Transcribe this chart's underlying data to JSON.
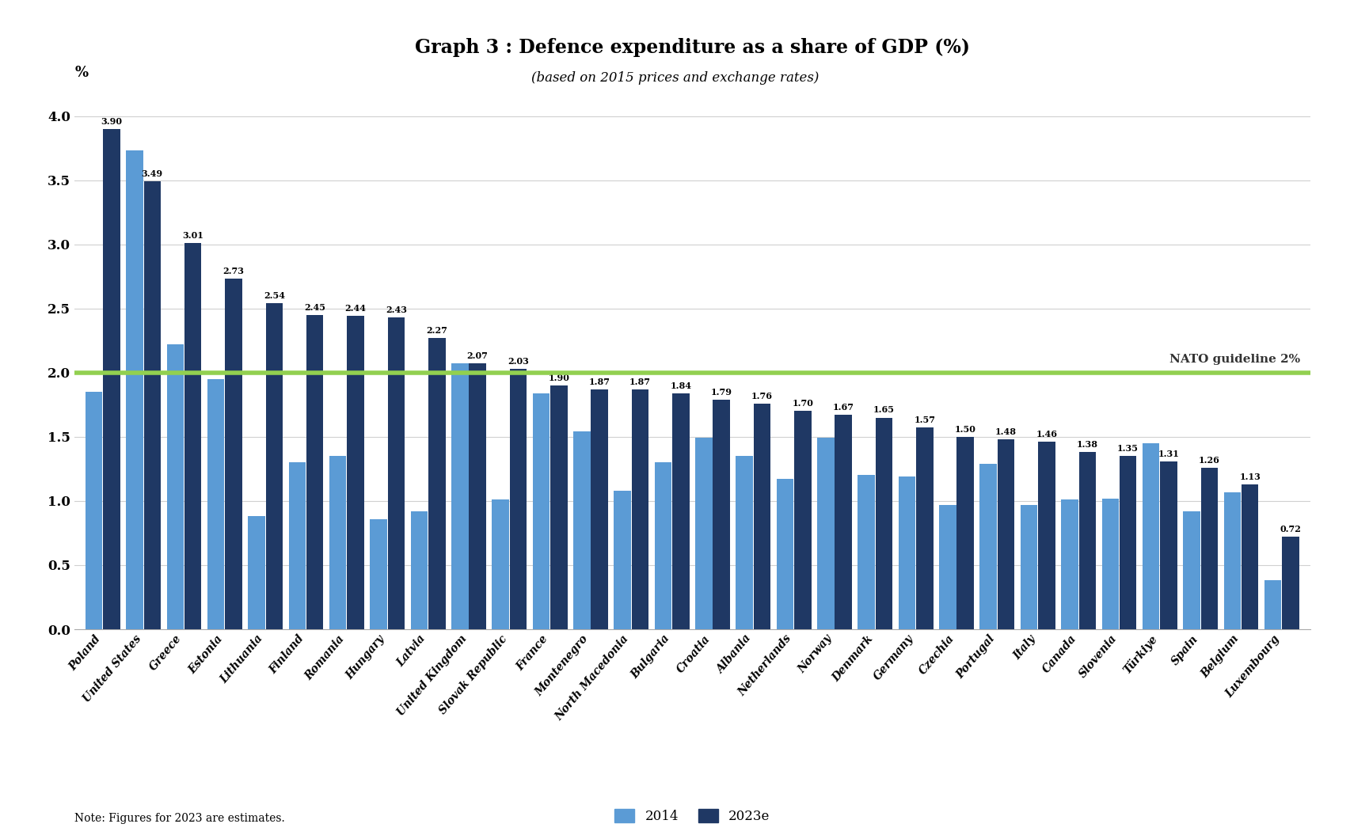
{
  "title": "Graph 3 : Defence expenditure as a share of GDP (%)",
  "subtitle": "(based on 2015 prices and exchange rates)",
  "note": "Note: Figures for 2023 are estimates.",
  "nato_guideline": 2.0,
  "nato_label": "NATO guideline 2%",
  "ylabel": "%",
  "ylim": [
    0,
    4.25
  ],
  "yticks": [
    0.0,
    0.5,
    1.0,
    1.5,
    2.0,
    2.5,
    3.0,
    3.5,
    4.0
  ],
  "color_2014": "#5b9bd5",
  "color_2023": "#1f3864",
  "legend_2014": "2014",
  "legend_2023": "2023e",
  "background_color": "#ffffff",
  "nato_line_color": "#92d050",
  "countries": [
    "Poland",
    "United States",
    "Greece",
    "Estonia",
    "Lithuania",
    "Finland",
    "Romania",
    "Hungary",
    "Latvia",
    "United Kingdom",
    "Slovak Republic",
    "France",
    "Montenegro",
    "North Macedonia",
    "Bulgaria",
    "Croatia",
    "Albania",
    "Netherlands",
    "Norway",
    "Denmark",
    "Germany",
    "Czechia",
    "Portugal",
    "Italy",
    "Canada",
    "Slovenia",
    "Türkiye",
    "Spain",
    "Belgium",
    "Luxembourg"
  ],
  "values_2014": [
    1.85,
    3.73,
    2.22,
    1.95,
    0.88,
    1.3,
    1.35,
    0.86,
    0.92,
    2.07,
    1.01,
    1.84,
    1.54,
    1.08,
    1.3,
    1.49,
    1.35,
    1.17,
    1.49,
    1.2,
    1.19,
    0.97,
    1.29,
    0.97,
    1.01,
    1.02,
    1.45,
    0.92,
    1.07,
    0.38
  ],
  "values_2023": [
    3.9,
    3.49,
    3.01,
    2.73,
    2.54,
    2.45,
    2.44,
    2.43,
    2.27,
    2.07,
    2.03,
    1.9,
    1.87,
    1.87,
    1.84,
    1.79,
    1.76,
    1.7,
    1.67,
    1.65,
    1.57,
    1.5,
    1.48,
    1.46,
    1.38,
    1.35,
    1.31,
    1.26,
    1.13,
    0.72
  ]
}
